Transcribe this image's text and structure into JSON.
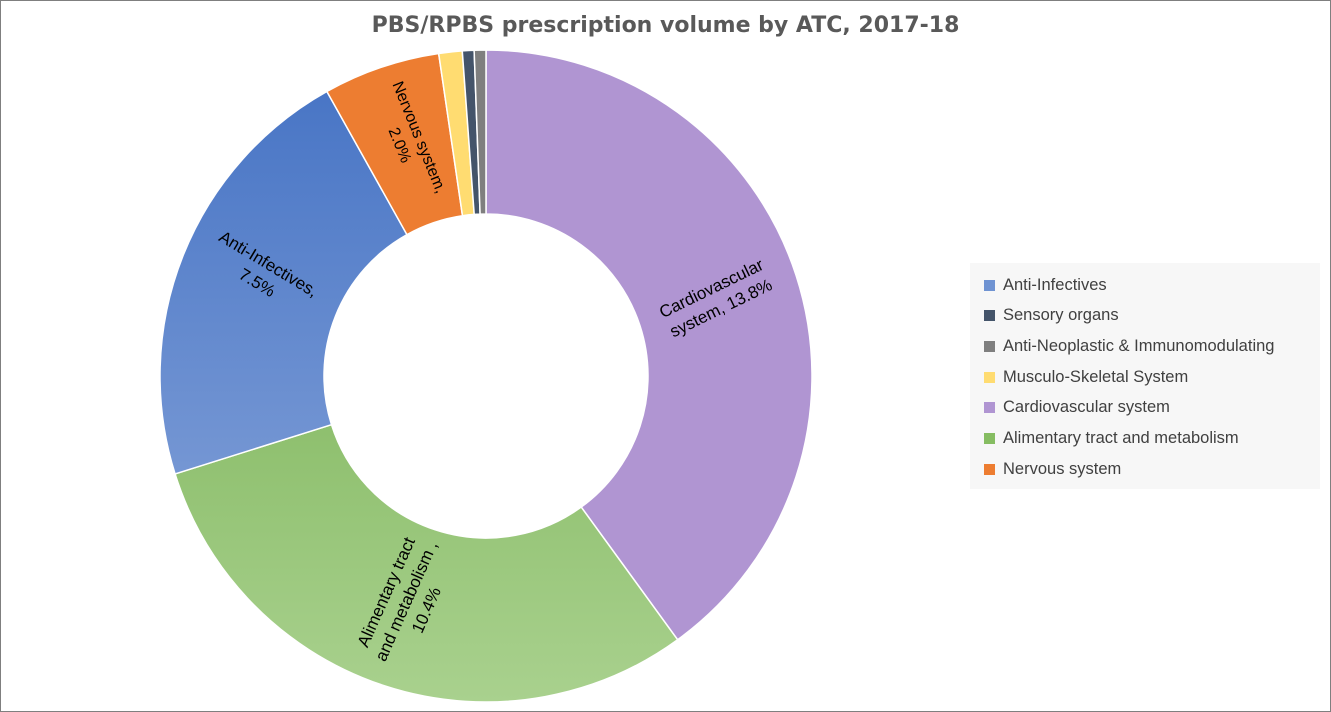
{
  "chart_data": {
    "type": "donut",
    "title": "PBS/RPBS prescription volume by ATC, 2017-18",
    "legend_position": "right",
    "categories": [
      "Cardiovascular system",
      "Alimentary tract and metabolism",
      "Anti-Infectives",
      "Nervous system",
      "Musculo-Skeletal System",
      "Sensory organs",
      "Anti-Neoplastic & Immunomodulating"
    ],
    "values": [
      13.8,
      10.4,
      7.5,
      2.0,
      0.4,
      0.2,
      0.2
    ],
    "colors": [
      "#b095d2",
      "#86bd62",
      "#6f93d2",
      "#ed7d31",
      "#ffdc71",
      "#44546a",
      "#7f7f7f"
    ],
    "data_labels": [
      [
        "Cardiovascular",
        "system, 13.8%"
      ],
      [
        "Alimentary tract",
        "and metabolism ,",
        "10.4%"
      ],
      [
        "Anti-Infectives,",
        "7.5%"
      ],
      [
        "Nervous system,",
        "2.0%"
      ],
      [],
      [],
      []
    ],
    "legend_order": [
      "Anti-Infectives",
      "Sensory organs",
      "Anti-Neoplastic & Immunomodulating",
      "Musculo-Skeletal System",
      "Cardiovascular system",
      "Alimentary tract and metabolism",
      "Nervous system"
    ]
  }
}
